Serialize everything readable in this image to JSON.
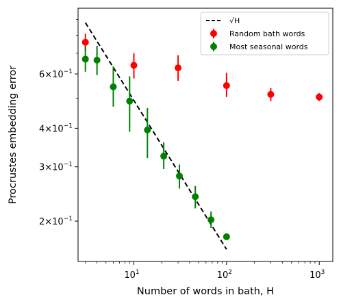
{
  "chart_data": {
    "type": "scatter",
    "xlabel": "Number of words in bath, H",
    "ylabel": "Procrustes embedding error",
    "xscale": "log",
    "yscale": "log",
    "xlim": [
      2.5,
      1400
    ],
    "ylim": [
      0.148,
      0.98
    ],
    "grid": false,
    "legend_position": "top-right",
    "x_ticks": [
      {
        "value": 10,
        "base": "10",
        "exp": "1"
      },
      {
        "value": 100,
        "base": "10",
        "exp": "2"
      },
      {
        "value": 1000,
        "base": "10",
        "exp": "3"
      }
    ],
    "y_ticks": [
      {
        "value": 0.2,
        "coef": "2",
        "exp": "−1"
      },
      {
        "value": 0.3,
        "coef": "3",
        "exp": "−1"
      },
      {
        "value": 0.4,
        "coef": "4",
        "exp": "−1"
      },
      {
        "value": 0.6,
        "coef": "6",
        "exp": "−1"
      }
    ],
    "y_tick_mark": "×10",
    "y_minor_ticks": [
      0.5,
      0.7,
      0.8,
      0.9
    ],
    "legend": [
      {
        "label": "√H",
        "marker": "dashed-line",
        "color": "#000000"
      },
      {
        "label": "Random bath words",
        "marker": "dot",
        "color": "#ff0000"
      },
      {
        "label": "Most seasonal words",
        "marker": "dot",
        "color": "#008000"
      }
    ],
    "series": [
      {
        "name": "Random bath words",
        "color": "#ff0000",
        "points": [
          {
            "x": 3,
            "y": 0.76,
            "yerr_low": 0.71,
            "yerr_high": 0.81
          },
          {
            "x": 10,
            "y": 0.64,
            "yerr_low": 0.58,
            "yerr_high": 0.7
          },
          {
            "x": 30,
            "y": 0.628,
            "yerr_low": 0.57,
            "yerr_high": 0.69
          },
          {
            "x": 100,
            "y": 0.55,
            "yerr_low": 0.505,
            "yerr_high": 0.605
          },
          {
            "x": 300,
            "y": 0.515,
            "yerr_low": 0.49,
            "yerr_high": 0.54
          },
          {
            "x": 1000,
            "y": 0.505,
            "yerr_low": 0.49,
            "yerr_high": 0.52
          }
        ]
      },
      {
        "name": "Most seasonal words",
        "color": "#008000",
        "points": [
          {
            "x": 3,
            "y": 0.67,
            "yerr_low": 0.61,
            "yerr_high": 0.74
          },
          {
            "x": 4,
            "y": 0.665,
            "yerr_low": 0.595,
            "yerr_high": 0.74
          },
          {
            "x": 6,
            "y": 0.545,
            "yerr_low": 0.47,
            "yerr_high": 0.635
          },
          {
            "x": 9,
            "y": 0.49,
            "yerr_low": 0.39,
            "yerr_high": 0.59
          },
          {
            "x": 14,
            "y": 0.395,
            "yerr_low": 0.32,
            "yerr_high": 0.465
          },
          {
            "x": 21,
            "y": 0.325,
            "yerr_low": 0.295,
            "yerr_high": 0.36
          },
          {
            "x": 31,
            "y": 0.28,
            "yerr_low": 0.255,
            "yerr_high": 0.305
          },
          {
            "x": 46,
            "y": 0.24,
            "yerr_low": 0.22,
            "yerr_high": 0.26
          },
          {
            "x": 68,
            "y": 0.202,
            "yerr_low": 0.19,
            "yerr_high": 0.215
          },
          {
            "x": 100,
            "y": 0.178,
            "yerr_low": 0.176,
            "yerr_high": 0.18
          }
        ]
      }
    ],
    "reference_line": {
      "name": "√H",
      "style": "dashed",
      "color": "#000000",
      "x_start": 3,
      "x_end": 100,
      "y_start": 0.88,
      "y_end": 0.162
    }
  }
}
